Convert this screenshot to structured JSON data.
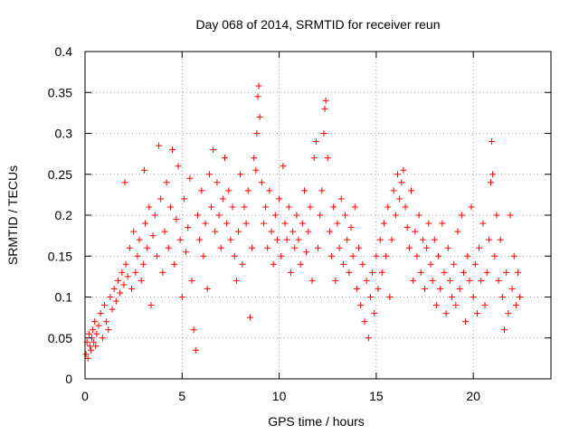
{
  "chart_data": {
    "type": "scatter",
    "title": "Day 068 of 2014, SRMTID for receiver reun",
    "xlabel": "GPS time / hours",
    "ylabel": "SRMTID / TECUs",
    "xlim": [
      0,
      24
    ],
    "ylim": [
      0,
      0.4
    ],
    "xticks": [
      0,
      5,
      10,
      15,
      20
    ],
    "xtick_labels": [
      "0",
      "5",
      "10",
      "15",
      "20"
    ],
    "yticks": [
      0,
      0.05,
      0.1,
      0.15,
      0.2,
      0.25,
      0.3,
      0.35,
      0.4
    ],
    "ytick_labels": [
      "0",
      "0.05",
      "0.1",
      "0.15",
      "0.2",
      "0.25",
      "0.3",
      "0.35",
      "0.4"
    ],
    "grid": true,
    "marker": "+",
    "marker_color": "#ff0000",
    "series": [
      {
        "name": "SRMTID",
        "points": [
          [
            0.05,
            0.03
          ],
          [
            0.1,
            0.045
          ],
          [
            0.15,
            0.025
          ],
          [
            0.2,
            0.055
          ],
          [
            0.25,
            0.04
          ],
          [
            0.3,
            0.035
          ],
          [
            0.35,
            0.05
          ],
          [
            0.4,
            0.06
          ],
          [
            0.45,
            0.045
          ],
          [
            0.5,
            0.07
          ],
          [
            0.55,
            0.04
          ],
          [
            0.6,
            0.055
          ],
          [
            0.7,
            0.065
          ],
          [
            0.8,
            0.08
          ],
          [
            0.9,
            0.05
          ],
          [
            1.0,
            0.09
          ],
          [
            1.1,
            0.07
          ],
          [
            1.2,
            0.06
          ],
          [
            1.3,
            0.1
          ],
          [
            1.4,
            0.085
          ],
          [
            1.5,
            0.11
          ],
          [
            1.6,
            0.095
          ],
          [
            1.7,
            0.12
          ],
          [
            1.8,
            0.105
          ],
          [
            1.9,
            0.13
          ],
          [
            2.0,
            0.115
          ],
          [
            2.05,
            0.24
          ],
          [
            2.1,
            0.14
          ],
          [
            2.2,
            0.125
          ],
          [
            2.3,
            0.16
          ],
          [
            2.4,
            0.11
          ],
          [
            2.5,
            0.18
          ],
          [
            2.6,
            0.13
          ],
          [
            2.7,
            0.15
          ],
          [
            2.8,
            0.17
          ],
          [
            2.9,
            0.12
          ],
          [
            3.0,
            0.14
          ],
          [
            3.05,
            0.255
          ],
          [
            3.1,
            0.19
          ],
          [
            3.2,
            0.16
          ],
          [
            3.3,
            0.21
          ],
          [
            3.4,
            0.09
          ],
          [
            3.5,
            0.175
          ],
          [
            3.6,
            0.2
          ],
          [
            3.7,
            0.15
          ],
          [
            3.8,
            0.285
          ],
          [
            3.9,
            0.22
          ],
          [
            4.0,
            0.13
          ],
          [
            4.1,
            0.18
          ],
          [
            4.2,
            0.24
          ],
          [
            4.3,
            0.16
          ],
          [
            4.4,
            0.21
          ],
          [
            4.5,
            0.28
          ],
          [
            4.6,
            0.14
          ],
          [
            4.7,
            0.195
          ],
          [
            4.8,
            0.26
          ],
          [
            4.9,
            0.17
          ],
          [
            5.0,
            0.1
          ],
          [
            5.1,
            0.22
          ],
          [
            5.2,
            0.155
          ],
          [
            5.3,
            0.185
          ],
          [
            5.4,
            0.245
          ],
          [
            5.5,
            0.12
          ],
          [
            5.6,
            0.06
          ],
          [
            5.7,
            0.035
          ],
          [
            5.8,
            0.2
          ],
          [
            5.9,
            0.17
          ],
          [
            6.0,
            0.23
          ],
          [
            6.1,
            0.15
          ],
          [
            6.2,
            0.19
          ],
          [
            6.3,
            0.11
          ],
          [
            6.4,
            0.25
          ],
          [
            6.5,
            0.21
          ],
          [
            6.6,
            0.28
          ],
          [
            6.7,
            0.18
          ],
          [
            6.8,
            0.24
          ],
          [
            6.9,
            0.2
          ],
          [
            7.0,
            0.16
          ],
          [
            7.1,
            0.22
          ],
          [
            7.2,
            0.27
          ],
          [
            7.3,
            0.19
          ],
          [
            7.4,
            0.23
          ],
          [
            7.5,
            0.17
          ],
          [
            7.6,
            0.21
          ],
          [
            7.7,
            0.15
          ],
          [
            7.8,
            0.12
          ],
          [
            7.9,
            0.18
          ],
          [
            8.0,
            0.25
          ],
          [
            8.1,
            0.14
          ],
          [
            8.2,
            0.21
          ],
          [
            8.3,
            0.19
          ],
          [
            8.4,
            0.23
          ],
          [
            8.5,
            0.075
          ],
          [
            8.6,
            0.16
          ],
          [
            8.7,
            0.27
          ],
          [
            8.8,
            0.255
          ],
          [
            8.85,
            0.3
          ],
          [
            8.9,
            0.345
          ],
          [
            8.95,
            0.358
          ],
          [
            9.0,
            0.32
          ],
          [
            9.1,
            0.24
          ],
          [
            9.2,
            0.19
          ],
          [
            9.3,
            0.21
          ],
          [
            9.4,
            0.16
          ],
          [
            9.5,
            0.23
          ],
          [
            9.6,
            0.18
          ],
          [
            9.7,
            0.14
          ],
          [
            9.8,
            0.2
          ],
          [
            9.9,
            0.17
          ],
          [
            10.0,
            0.22
          ],
          [
            10.1,
            0.15
          ],
          [
            10.2,
            0.26
          ],
          [
            10.3,
            0.19
          ],
          [
            10.4,
            0.17
          ],
          [
            10.5,
            0.21
          ],
          [
            10.6,
            0.13
          ],
          [
            10.7,
            0.18
          ],
          [
            10.8,
            0.16
          ],
          [
            10.9,
            0.2
          ],
          [
            11.0,
            0.17
          ],
          [
            11.1,
            0.14
          ],
          [
            11.2,
            0.19
          ],
          [
            11.3,
            0.23
          ],
          [
            11.4,
            0.155
          ],
          [
            11.5,
            0.18
          ],
          [
            11.6,
            0.21
          ],
          [
            11.7,
            0.12
          ],
          [
            11.8,
            0.27
          ],
          [
            11.9,
            0.29
          ],
          [
            12.0,
            0.16
          ],
          [
            12.1,
            0.2
          ],
          [
            12.2,
            0.23
          ],
          [
            12.3,
            0.3
          ],
          [
            12.35,
            0.33
          ],
          [
            12.4,
            0.34
          ],
          [
            12.5,
            0.27
          ],
          [
            12.6,
            0.18
          ],
          [
            12.7,
            0.15
          ],
          [
            12.8,
            0.21
          ],
          [
            12.9,
            0.12
          ],
          [
            13.0,
            0.19
          ],
          [
            13.1,
            0.16
          ],
          [
            13.2,
            0.22
          ],
          [
            13.3,
            0.14
          ],
          [
            13.4,
            0.2
          ],
          [
            13.5,
            0.17
          ],
          [
            13.6,
            0.13
          ],
          [
            13.7,
            0.185
          ],
          [
            13.8,
            0.15
          ],
          [
            13.9,
            0.21
          ],
          [
            14.0,
            0.11
          ],
          [
            14.1,
            0.16
          ],
          [
            14.2,
            0.09
          ],
          [
            14.3,
            0.14
          ],
          [
            14.4,
            0.07
          ],
          [
            14.5,
            0.12
          ],
          [
            14.6,
            0.05
          ],
          [
            14.7,
            0.1
          ],
          [
            14.8,
            0.13
          ],
          [
            14.9,
            0.08
          ],
          [
            15.0,
            0.15
          ],
          [
            15.1,
            0.11
          ],
          [
            15.2,
            0.17
          ],
          [
            15.3,
            0.13
          ],
          [
            15.4,
            0.19
          ],
          [
            15.5,
            0.15
          ],
          [
            15.6,
            0.21
          ],
          [
            15.7,
            0.1
          ],
          [
            15.8,
            0.17
          ],
          [
            15.9,
            0.23
          ],
          [
            16.0,
            0.2
          ],
          [
            16.1,
            0.25
          ],
          [
            16.2,
            0.22
          ],
          [
            16.3,
            0.24
          ],
          [
            16.4,
            0.255
          ],
          [
            16.5,
            0.21
          ],
          [
            16.6,
            0.185
          ],
          [
            16.7,
            0.16
          ],
          [
            16.8,
            0.23
          ],
          [
            16.9,
            0.12
          ],
          [
            17.0,
            0.18
          ],
          [
            17.1,
            0.15
          ],
          [
            17.2,
            0.2
          ],
          [
            17.3,
            0.13
          ],
          [
            17.4,
            0.17
          ],
          [
            17.5,
            0.11
          ],
          [
            17.6,
            0.16
          ],
          [
            17.7,
            0.19
          ],
          [
            17.8,
            0.14
          ],
          [
            17.9,
            0.12
          ],
          [
            18.0,
            0.17
          ],
          [
            18.1,
            0.09
          ],
          [
            18.2,
            0.15
          ],
          [
            18.3,
            0.11
          ],
          [
            18.4,
            0.19
          ],
          [
            18.5,
            0.13
          ],
          [
            18.6,
            0.08
          ],
          [
            18.7,
            0.16
          ],
          [
            18.8,
            0.12
          ],
          [
            18.9,
            0.1
          ],
          [
            19.0,
            0.14
          ],
          [
            19.1,
            0.09
          ],
          [
            19.2,
            0.18
          ],
          [
            19.3,
            0.11
          ],
          [
            19.4,
            0.2
          ],
          [
            19.5,
            0.13
          ],
          [
            19.6,
            0.07
          ],
          [
            19.7,
            0.15
          ],
          [
            19.8,
            0.12
          ],
          [
            19.9,
            0.21
          ],
          [
            20.0,
            0.1
          ],
          [
            20.1,
            0.14
          ],
          [
            20.2,
            0.08
          ],
          [
            20.3,
            0.16
          ],
          [
            20.4,
            0.12
          ],
          [
            20.5,
            0.19
          ],
          [
            20.6,
            0.09
          ],
          [
            20.7,
            0.13
          ],
          [
            20.8,
            0.17
          ],
          [
            20.9,
            0.24
          ],
          [
            20.95,
            0.29
          ],
          [
            21.0,
            0.25
          ],
          [
            21.1,
            0.15
          ],
          [
            21.2,
            0.2
          ],
          [
            21.3,
            0.12
          ],
          [
            21.4,
            0.17
          ],
          [
            21.5,
            0.1
          ],
          [
            21.6,
            0.06
          ],
          [
            21.7,
            0.13
          ],
          [
            21.8,
            0.08
          ],
          [
            21.9,
            0.2
          ],
          [
            22.0,
            0.11
          ],
          [
            22.1,
            0.15
          ],
          [
            22.2,
            0.09
          ],
          [
            22.3,
            0.13
          ],
          [
            22.4,
            0.1
          ]
        ]
      }
    ]
  }
}
